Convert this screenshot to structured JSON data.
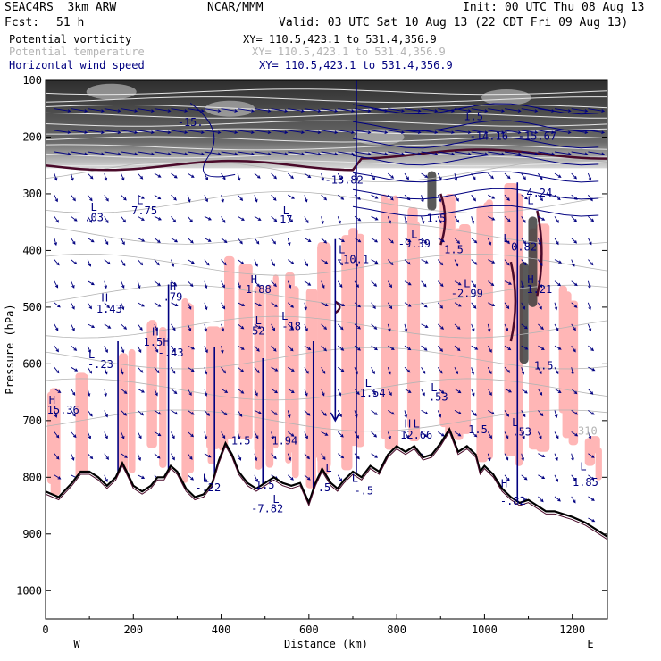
{
  "header": {
    "model": "SEAC4RS  3km ARW",
    "org": "NCAR/MMM",
    "init": "Init: 00 UTC Thu 08 Aug 13",
    "fcst_label": "Fcst:",
    "fcst_value": "51 h",
    "valid": "Valid: 03 UTC Sat 10 Aug 13 (22 CDT Fri 09 Aug 13)"
  },
  "legend": [
    {
      "name": "Potential vorticity",
      "xy": "XY= 110.5,423.1 to 531.4,356.9",
      "color": "#000000"
    },
    {
      "name": "Potential temperature",
      "xy": "XY= 110.5,423.1 to 531.4,356.9",
      "color": "#b4b4b4"
    },
    {
      "name": "Horizontal wind speed",
      "xy": "XY= 110.5,423.1 to 531.4,356.9",
      "color": "#000080"
    }
  ],
  "colors": {
    "pv_positive": "#ffb6b6",
    "stratosphere_dark": "#3a3a3a",
    "wind": "#000080",
    "theta": "#b4b4b4",
    "terrain": "#000000",
    "pv_contour": "#4a0a2a"
  },
  "chart_data": {
    "type": "cross-section",
    "xlabel": "Distance (km)",
    "ylabel": "Pressure (hPa)",
    "xlim": [
      0,
      1280
    ],
    "ylim": [
      1050,
      100
    ],
    "x_ticks": [
      "0",
      "200",
      "400",
      "600",
      "800",
      "1000",
      "1200"
    ],
    "y_ticks": [
      "100",
      "200",
      "300",
      "400",
      "500",
      "600",
      "700",
      "800",
      "900",
      "1000"
    ],
    "x_end_labels": {
      "left": "W",
      "right": "E"
    },
    "terrain": [
      [
        0,
        825
      ],
      [
        30,
        835
      ],
      [
        60,
        810
      ],
      [
        80,
        790
      ],
      [
        100,
        790
      ],
      [
        120,
        800
      ],
      [
        140,
        815
      ],
      [
        160,
        800
      ],
      [
        175,
        775
      ],
      [
        185,
        790
      ],
      [
        200,
        815
      ],
      [
        220,
        825
      ],
      [
        240,
        815
      ],
      [
        255,
        800
      ],
      [
        270,
        800
      ],
      [
        285,
        780
      ],
      [
        300,
        790
      ],
      [
        320,
        820
      ],
      [
        340,
        835
      ],
      [
        360,
        830
      ],
      [
        380,
        810
      ],
      [
        395,
        770
      ],
      [
        410,
        740
      ],
      [
        425,
        760
      ],
      [
        440,
        790
      ],
      [
        460,
        810
      ],
      [
        480,
        820
      ],
      [
        500,
        810
      ],
      [
        520,
        800
      ],
      [
        540,
        810
      ],
      [
        560,
        815
      ],
      [
        580,
        810
      ],
      [
        600,
        845
      ],
      [
        615,
        810
      ],
      [
        630,
        785
      ],
      [
        650,
        810
      ],
      [
        665,
        820
      ],
      [
        680,
        805
      ],
      [
        700,
        790
      ],
      [
        720,
        800
      ],
      [
        740,
        780
      ],
      [
        760,
        790
      ],
      [
        780,
        760
      ],
      [
        800,
        745
      ],
      [
        820,
        755
      ],
      [
        840,
        745
      ],
      [
        860,
        765
      ],
      [
        880,
        760
      ],
      [
        900,
        740
      ],
      [
        920,
        715
      ],
      [
        940,
        755
      ],
      [
        960,
        745
      ],
      [
        980,
        760
      ],
      [
        990,
        790
      ],
      [
        1000,
        780
      ],
      [
        1020,
        795
      ],
      [
        1040,
        820
      ],
      [
        1060,
        835
      ],
      [
        1080,
        845
      ],
      [
        1100,
        840
      ],
      [
        1120,
        850
      ],
      [
        1140,
        860
      ],
      [
        1160,
        860
      ],
      [
        1180,
        865
      ],
      [
        1200,
        870
      ],
      [
        1230,
        880
      ],
      [
        1260,
        895
      ],
      [
        1280,
        905
      ]
    ],
    "contour_labels": [
      {
        "text": "L",
        "x": 110,
        "p": 330,
        "color": "#000080"
      },
      {
        "text": ".03",
        "x": 110,
        "p": 348,
        "color": "#000080"
      },
      {
        "text": "L",
        "x": 215,
        "p": 318,
        "color": "#000080"
      },
      {
        "text": "7.75",
        "x": 225,
        "p": 336,
        "color": "#000080"
      },
      {
        "text": "L",
        "x": 548,
        "p": 336,
        "color": "#000080"
      },
      {
        "text": "17",
        "x": 548,
        "p": 352,
        "color": "#000080"
      },
      {
        "text": "-13.82",
        "x": 680,
        "p": 282,
        "color": "#000080"
      },
      {
        "text": "L",
        "x": 675,
        "p": 405,
        "color": "#000080"
      },
      {
        "text": "-10.1",
        "x": 700,
        "p": 422,
        "color": "#000080"
      },
      {
        "text": "L",
        "x": 840,
        "p": 378,
        "color": "#000080"
      },
      {
        "text": "-9.39",
        "x": 840,
        "p": 395,
        "color": "#000080"
      },
      {
        "text": "1.5",
        "x": 890,
        "p": 350,
        "color": "#000080"
      },
      {
        "text": "1.5",
        "x": 930,
        "p": 405,
        "color": "#000080"
      },
      {
        "text": "L",
        "x": 1050,
        "p": 385,
        "color": "#000080"
      },
      {
        "text": "0.82",
        "x": 1090,
        "p": 400,
        "color": "#000080"
      },
      {
        "text": "L",
        "x": 960,
        "p": 465,
        "color": "#000080"
      },
      {
        "text": "-2.99",
        "x": 960,
        "p": 482,
        "color": "#000080"
      },
      {
        "text": "H",
        "x": 1105,
        "p": 458,
        "color": "#000080"
      },
      {
        "text": "1.21",
        "x": 1125,
        "p": 475,
        "color": "#000080"
      },
      {
        "text": "L",
        "x": 1105,
        "p": 318,
        "color": "#000080"
      },
      {
        "text": "4.24",
        "x": 1125,
        "p": 305,
        "color": "#000080"
      },
      {
        "text": "1.5",
        "x": 975,
        "p": 170,
        "color": "#000080"
      },
      {
        "text": "-14.16",
        "x": 1010,
        "p": 205,
        "color": "#000080"
      },
      {
        "text": "-15.67",
        "x": 1120,
        "p": 205,
        "color": "#000080"
      },
      {
        "text": "-15.",
        "x": 330,
        "p": 180,
        "color": "#000080"
      },
      {
        "text": "H",
        "x": 135,
        "p": 490,
        "color": "#000080"
      },
      {
        "text": "1.43",
        "x": 145,
        "p": 510,
        "color": "#000080"
      },
      {
        "text": "H",
        "x": 290,
        "p": 470,
        "color": "#000080"
      },
      {
        "text": ".79",
        "x": 290,
        "p": 488,
        "color": "#000080"
      },
      {
        "text": "H",
        "x": 475,
        "p": 458,
        "color": "#000080"
      },
      {
        "text": "1.88",
        "x": 485,
        "p": 475,
        "color": "#000080"
      },
      {
        "text": "L",
        "x": 485,
        "p": 530,
        "color": "#000080"
      },
      {
        "text": "52",
        "x": 485,
        "p": 548,
        "color": "#000080"
      },
      {
        "text": "L",
        "x": 545,
        "p": 522,
        "color": "#000080"
      },
      {
        "text": "-18",
        "x": 560,
        "p": 540,
        "color": "#000080"
      },
      {
        "text": "L",
        "x": 105,
        "p": 590,
        "color": "#000080"
      },
      {
        "text": "-.23",
        "x": 125,
        "p": 607,
        "color": "#000080"
      },
      {
        "text": "H",
        "x": 250,
        "p": 550,
        "color": "#000080"
      },
      {
        "text": "1.5",
        "x": 245,
        "p": 568,
        "color": "#000080"
      },
      {
        "text": "H",
        "x": 275,
        "p": 568,
        "color": "#000080"
      },
      {
        "text": "-.43",
        "x": 285,
        "p": 587,
        "color": "#000080"
      },
      {
        "text": "H",
        "x": 15,
        "p": 670,
        "color": "#000080"
      },
      {
        "text": "15.36",
        "x": 40,
        "p": 688,
        "color": "#000080"
      },
      {
        "text": "L",
        "x": 735,
        "p": 640,
        "color": "#000080"
      },
      {
        "text": "1.54",
        "x": 745,
        "p": 658,
        "color": "#000080"
      },
      {
        "text": "L",
        "x": 885,
        "p": 648,
        "color": "#000080"
      },
      {
        "text": ".53",
        "x": 895,
        "p": 665,
        "color": "#000080"
      },
      {
        "text": "1.5",
        "x": 1135,
        "p": 610,
        "color": "#000080"
      },
      {
        "text": "L",
        "x": 1070,
        "p": 710,
        "color": "#000080"
      },
      {
        "text": ".53",
        "x": 1085,
        "p": 726,
        "color": "#000080"
      },
      {
        "text": "H",
        "x": 825,
        "p": 712,
        "color": "#000080"
      },
      {
        "text": "L",
        "x": 845,
        "p": 712,
        "color": "#000080"
      },
      {
        "text": "12.66",
        "x": 845,
        "p": 732,
        "color": "#000080"
      },
      {
        "text": "1.5",
        "x": 985,
        "p": 722,
        "color": "#000080"
      },
      {
        "text": "1.5",
        "x": 445,
        "p": 742,
        "color": "#000080"
      },
      {
        "text": "1.94",
        "x": 545,
        "p": 742,
        "color": "#000080"
      },
      {
        "text": "L",
        "x": 365,
        "p": 808,
        "color": "#000080"
      },
      {
        "text": "-.22",
        "x": 370,
        "p": 825,
        "color": "#000080"
      },
      {
        "text": "1.5",
        "x": 500,
        "p": 820,
        "color": "#000080"
      },
      {
        "text": "L",
        "x": 525,
        "p": 845,
        "color": "#000080"
      },
      {
        "text": "-7.82",
        "x": 505,
        "p": 862,
        "color": "#000080"
      },
      {
        "text": "L",
        "x": 645,
        "p": 790,
        "color": "#000080"
      },
      {
        "text": ".5",
        "x": 635,
        "p": 825,
        "color": "#000080"
      },
      {
        "text": "L",
        "x": 705,
        "p": 808,
        "color": "#000080"
      },
      {
        "text": "-.5",
        "x": 725,
        "p": 830,
        "color": "#000080"
      },
      {
        "text": "H",
        "x": 1045,
        "p": 818,
        "color": "#000080"
      },
      {
        "text": "-.82",
        "x": 1065,
        "p": 848,
        "color": "#000080"
      },
      {
        "text": "L",
        "x": 1225,
        "p": 788,
        "color": "#000080"
      },
      {
        "text": "1.85",
        "x": 1230,
        "p": 815,
        "color": "#000080"
      },
      {
        "text": "310",
        "x": 1235,
        "p": 725,
        "color": "#b4b4b4"
      }
    ]
  }
}
